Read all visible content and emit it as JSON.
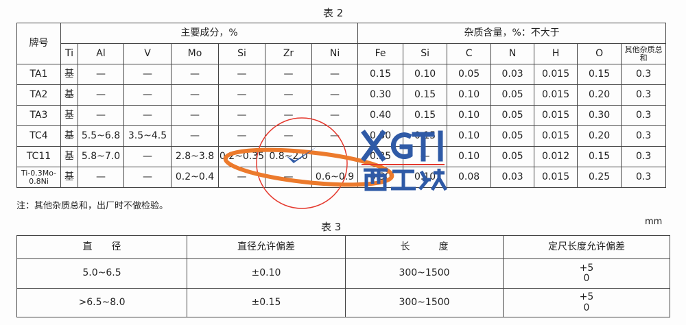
{
  "table2": {
    "title": "表 2",
    "header_grade": "牌号",
    "group_main": "主要成分，%",
    "group_impurity": "杂质含量，%：不大于",
    "main_cols": [
      "Ti",
      "Al",
      "V",
      "Mo",
      "Si",
      "Zr",
      "Ni"
    ],
    "imp_cols": [
      "Fe",
      "Si",
      "C",
      "N",
      "H",
      "O",
      "其他杂质总和"
    ],
    "rows": [
      {
        "grade": "TA1",
        "cells": [
          "基",
          "—",
          "—",
          "—",
          "—",
          "—",
          "—",
          "0.15",
          "0.10",
          "0.05",
          "0.03",
          "0.015",
          "0.15",
          "0.3"
        ]
      },
      {
        "grade": "TA2",
        "cells": [
          "基",
          "—",
          "—",
          "—",
          "—",
          "—",
          "—",
          "0.30",
          "0.15",
          "0.10",
          "0.05",
          "0.015",
          "0.20",
          "0.3"
        ]
      },
      {
        "grade": "TA3",
        "cells": [
          "基",
          "—",
          "—",
          "—",
          "—",
          "—",
          "—",
          "0.40",
          "0.15",
          "0.10",
          "0.05",
          "0.015",
          "0.30",
          "0.3"
        ]
      },
      {
        "grade": "TC4",
        "cells": [
          "基",
          "5.5~6.8",
          "3.5~4.5",
          "—",
          "—",
          "—",
          "—",
          "0.30",
          "0.15",
          "0.10",
          "0.05",
          "0.015",
          "0.20",
          "0.3"
        ]
      },
      {
        "grade": "TC11",
        "cells": [
          "基",
          "5.8~7.0",
          "—",
          "2.8~3.8",
          "0.2~0.35",
          "0.8~2.0",
          "—",
          "0.25",
          "—",
          "0.10",
          "0.05",
          "0.012",
          "0.15",
          "0.3"
        ]
      },
      {
        "grade": "Ti-0.3Mo-0.8Ni",
        "cells": [
          "基",
          "—",
          "—",
          "0.2~0.4",
          "—",
          "—",
          "0.6~0.9",
          "0.30",
          "0.10",
          "0.08",
          "0.03",
          "0.015",
          "0.25",
          "0.3"
        ]
      }
    ],
    "note": "注：其他杂质总和，出厂时不做检验。"
  },
  "table3": {
    "title": "表 3",
    "unit": "mm",
    "headers": [
      "直　　径",
      "直径允许偏差",
      "长　　　度",
      "定尺长度允许偏差"
    ],
    "rows": [
      {
        "diameter": "5.0~6.5",
        "tolerance": "±0.10",
        "length": "300~1500",
        "len_tol_upper": "+5",
        "len_tol_lower": "0"
      },
      {
        "diameter": ">6.5~8.0",
        "tolerance": "±0.15",
        "length": "300~1500",
        "len_tol_upper": "+5",
        "len_tol_lower": "0"
      }
    ]
  },
  "watermark": {
    "logo_text": "XGTI",
    "logo_cn": "西工钛",
    "logo_color": "#2f5aa6",
    "circle_color": "#e53a2f",
    "ring_color": "#ec7a2c"
  }
}
